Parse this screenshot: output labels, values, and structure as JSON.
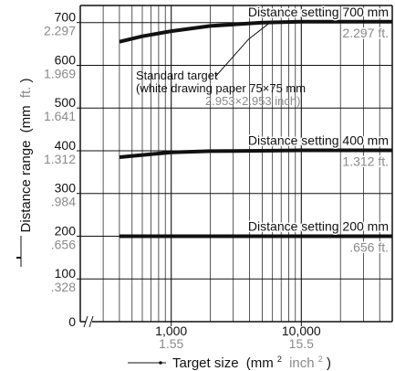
{
  "chart_data": {
    "type": "line",
    "title": "",
    "xlabel": "Target size",
    "xlabel_unit_primary": "(mm",
    "xlabel_unit_primary_sup": "2",
    "xlabel_unit_secondary": "inch",
    "xlabel_unit_secondary_sup": "2",
    "xlabel_close": ")",
    "ylabel": "Distance range",
    "ylabel_unit_primary": "(mm",
    "ylabel_unit_secondary": "ft.",
    "ylabel_close": ")",
    "x_scale": "log",
    "x_axis_break": true,
    "xlim": [
      200,
      50000
    ],
    "ylim": [
      0,
      740
    ],
    "grid": true,
    "x_ticks": [
      {
        "value": 1000,
        "label": "1,000",
        "label_secondary": "1.55"
      },
      {
        "value": 10000,
        "label": "10,000",
        "label_secondary": "15.5"
      }
    ],
    "y_ticks": [
      {
        "value": 0,
        "label": "0",
        "label_secondary": ""
      },
      {
        "value": 100,
        "label": "100",
        "label_secondary": ".328"
      },
      {
        "value": 200,
        "label": "200",
        "label_secondary": ".656"
      },
      {
        "value": 300,
        "label": "300",
        "label_secondary": ".984"
      },
      {
        "value": 400,
        "label": "400",
        "label_secondary": "1.312"
      },
      {
        "value": 500,
        "label": "500",
        "label_secondary": "1.641"
      },
      {
        "value": 600,
        "label": "600",
        "label_secondary": "1.969"
      },
      {
        "value": 700,
        "label": "700",
        "label_secondary": "2.297"
      }
    ],
    "series": [
      {
        "name": "Distance setting 700 mm",
        "label_secondary": "2.297 ft.",
        "x": [
          400,
          600,
          1000,
          2000,
          5000,
          10000,
          50000
        ],
        "y": [
          655,
          668,
          680,
          692,
          700,
          702,
          702
        ]
      },
      {
        "name": "Distance setting 400 mm",
        "label_secondary": "1.312 ft.",
        "x": [
          400,
          700,
          1000,
          2000,
          5000,
          10000,
          50000
        ],
        "y": [
          385,
          392,
          396,
          399,
          400,
          401,
          401
        ]
      },
      {
        "name": "Distance setting 200 mm",
        "label_secondary": ".656 ft.",
        "x": [
          400,
          1000,
          5000,
          10000,
          50000
        ],
        "y": [
          200,
          200,
          200,
          200,
          200
        ]
      }
    ],
    "annotation": {
      "line1": "Standard target",
      "line2": "(white drawing paper 75×75 mm",
      "line3": "2.953×2.953 inch)",
      "x": 5625,
      "y": 700
    },
    "colors": {
      "primary_text": "#111111",
      "secondary_text": "#8a8a8a",
      "line": "#111111"
    }
  }
}
